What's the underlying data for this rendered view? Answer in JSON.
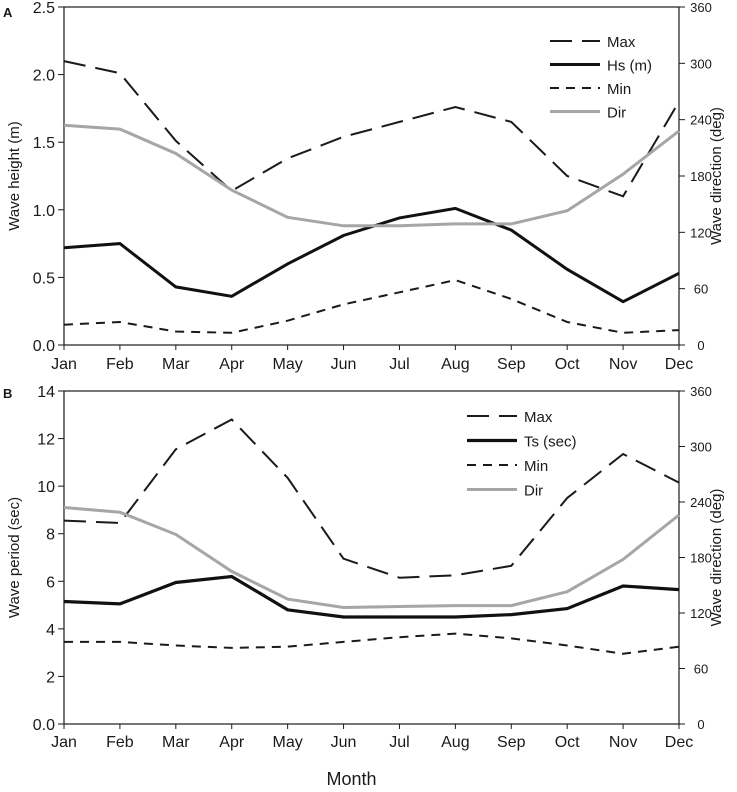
{
  "chart_data": [
    {
      "panel_label": "A",
      "type": "line",
      "categories": [
        "Jan",
        "Feb",
        "Mar",
        "Apr",
        "May",
        "Jun",
        "Jul",
        "Aug",
        "Sep",
        "Oct",
        "Nov",
        "Dec"
      ],
      "ylabel": "Wave height (m)",
      "y2label": "Wave direction (deg)",
      "ylim": [
        0,
        2.5
      ],
      "y2lim": [
        0,
        360
      ],
      "yticks": [
        "0.0",
        "0.5",
        "1.0",
        "1.5",
        "2.0",
        "2.5"
      ],
      "y2ticks": [
        "0",
        "60",
        "120",
        "180",
        "240",
        "300",
        "360"
      ],
      "series": [
        {
          "name": "Max",
          "axis": "left",
          "style": "longdash",
          "color": "#1a1a1a",
          "values": [
            2.1,
            2.01,
            1.51,
            1.14,
            1.38,
            1.54,
            1.65,
            1.76,
            1.65,
            1.25,
            1.1,
            1.8
          ]
        },
        {
          "name": "Hs (m)",
          "axis": "left",
          "style": "solid",
          "color": "#111111",
          "values": [
            0.72,
            0.75,
            0.43,
            0.36,
            0.6,
            0.81,
            0.94,
            1.01,
            0.85,
            0.56,
            0.32,
            0.53
          ]
        },
        {
          "name": "Min",
          "axis": "left",
          "style": "shortdash",
          "color": "#1a1a1a",
          "values": [
            0.15,
            0.17,
            0.1,
            0.09,
            0.18,
            0.3,
            0.39,
            0.48,
            0.34,
            0.17,
            0.09,
            0.11
          ]
        },
        {
          "name": "Dir",
          "axis": "right",
          "style": "solid",
          "color": "#a6a6a6",
          "values": [
            234,
            230,
            204,
            165,
            136,
            127,
            127,
            129,
            129,
            143,
            182,
            228
          ]
        }
      ]
    },
    {
      "panel_label": "B",
      "type": "line",
      "categories": [
        "Jan",
        "Feb",
        "Mar",
        "Apr",
        "May",
        "Jun",
        "Jul",
        "Aug",
        "Sep",
        "Oct",
        "Nov",
        "Dec"
      ],
      "ylabel": "Wave period (sec)",
      "y2label": "Wave direction (deg)",
      "xlabel": "Month",
      "ylim": [
        0,
        14
      ],
      "y2lim": [
        0,
        360
      ],
      "yticks": [
        "0.0",
        "2",
        "4",
        "6",
        "8",
        "10",
        "12",
        "14"
      ],
      "y2ticks": [
        "0",
        "60",
        "120",
        "180",
        "240",
        "300",
        "360"
      ],
      "series": [
        {
          "name": "Max",
          "axis": "left",
          "style": "longdash",
          "color": "#1a1a1a",
          "values": [
            8.55,
            8.45,
            11.55,
            12.8,
            10.35,
            6.95,
            6.15,
            6.25,
            6.65,
            9.5,
            11.35,
            10.15
          ]
        },
        {
          "name": "Ts (sec)",
          "axis": "left",
          "style": "solid",
          "color": "#111111",
          "values": [
            5.15,
            5.05,
            5.95,
            6.2,
            4.8,
            4.5,
            4.5,
            4.5,
            4.6,
            4.85,
            5.8,
            5.65
          ]
        },
        {
          "name": "Min",
          "axis": "left",
          "style": "shortdash",
          "color": "#1a1a1a",
          "values": [
            3.45,
            3.45,
            3.3,
            3.2,
            3.25,
            3.45,
            3.65,
            3.8,
            3.6,
            3.3,
            2.95,
            3.25
          ]
        },
        {
          "name": "Dir",
          "axis": "right",
          "style": "solid",
          "color": "#a6a6a6",
          "values": [
            234,
            229,
            205,
            165,
            135,
            126,
            127,
            128,
            128,
            143,
            178,
            226
          ]
        }
      ]
    }
  ]
}
